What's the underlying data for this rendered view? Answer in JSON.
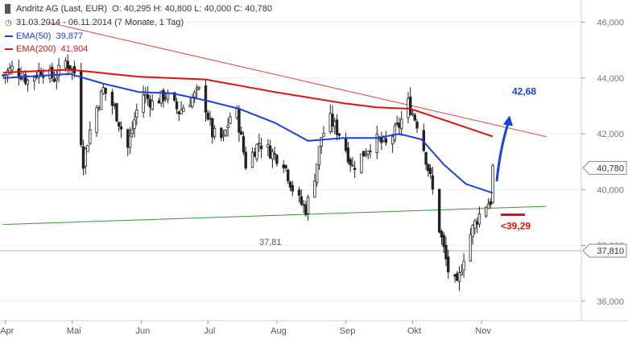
{
  "header": {
    "instrument": "Andritz AG (Last, EUR)",
    "ohlc": "O: 40,295  H: 40,800  L: 40,000  C: 40,780",
    "range": "31.03.2014 - 06.11.2014 (7 Monate, 1 Tag)",
    "ema50_label": "EMA(50)",
    "ema50_value": "39,877",
    "ema200_label": "EMA(200)",
    "ema200_value": "41,904"
  },
  "colors": {
    "ema50": "#1a3fe0",
    "ema200": "#e01010",
    "support": "#2e9a2e",
    "resistance": "#e84040",
    "target": "#1a3fe0",
    "stop": "#e01010",
    "candle": "#222222"
  },
  "chart_data": {
    "type": "candlestick",
    "x_range": [
      "2014-03-31",
      "2014-11-06"
    ],
    "x_ticks": [
      "Apr",
      "Mai",
      "Jun",
      "Jul",
      "Aug",
      "Sep",
      "Okt",
      "Nov"
    ],
    "y_ticks": [
      "36,000",
      "38,000",
      "40,000",
      "42,000",
      "44,000",
      "46,000"
    ],
    "ylim": [
      35.3,
      46.8
    ],
    "last_price_label": "40,780",
    "horizontal_line": {
      "value": 37.81,
      "label": "37,81",
      "axis_label": "37,810"
    },
    "target": {
      "label": "42,68",
      "from": 40.3,
      "to": 42.6
    },
    "stop": {
      "label": "<39,29",
      "value": 39.1
    },
    "close_path": [
      [
        "2014-03-31",
        44.1
      ],
      [
        "2014-04-05",
        44.4
      ],
      [
        "2014-04-11",
        43.9
      ],
      [
        "2014-04-17",
        44.3
      ],
      [
        "2014-04-23",
        44.0
      ],
      [
        "2014-04-28",
        44.6
      ],
      [
        "2014-05-02",
        44.2
      ],
      [
        "2014-05-06",
        41.0
      ],
      [
        "2014-05-10",
        42.5
      ],
      [
        "2014-05-15",
        43.6
      ],
      [
        "2014-05-20",
        42.9
      ],
      [
        "2014-05-26",
        41.5
      ],
      [
        "2014-06-01",
        43.5
      ],
      [
        "2014-06-06",
        43.1
      ],
      [
        "2014-06-12",
        43.4
      ],
      [
        "2014-06-18",
        42.8
      ],
      [
        "2014-06-24",
        43.3
      ],
      [
        "2014-06-28",
        43.6
      ],
      [
        "2014-07-03",
        42.0
      ],
      [
        "2014-07-08",
        41.8
      ],
      [
        "2014-07-13",
        43.2
      ],
      [
        "2014-07-18",
        40.9
      ],
      [
        "2014-07-24",
        41.7
      ],
      [
        "2014-07-30",
        41.3
      ],
      [
        "2014-08-04",
        41.0
      ],
      [
        "2014-08-09",
        39.8
      ],
      [
        "2014-08-14",
        39.3
      ],
      [
        "2014-08-18",
        40.5
      ],
      [
        "2014-08-21",
        41.9
      ],
      [
        "2014-08-25",
        42.5
      ],
      [
        "2014-08-30",
        41.9
      ],
      [
        "2014-09-04",
        40.8
      ],
      [
        "2014-09-09",
        41.3
      ],
      [
        "2014-09-14",
        41.8
      ],
      [
        "2014-09-19",
        41.6
      ],
      [
        "2014-09-25",
        42.3
      ],
      [
        "2014-09-29",
        43.1
      ],
      [
        "2014-10-04",
        42.2
      ],
      [
        "2014-10-09",
        40.4
      ],
      [
        "2014-10-13",
        38.6
      ],
      [
        "2014-10-17",
        37.1
      ],
      [
        "2014-10-21",
        36.5
      ],
      [
        "2014-10-25",
        38.0
      ],
      [
        "2014-10-29",
        38.8
      ],
      [
        "2014-11-02",
        39.4
      ],
      [
        "2014-11-05",
        39.6
      ],
      [
        "2014-11-06",
        40.78
      ]
    ],
    "series": [
      {
        "name": "EMA(50)",
        "points": [
          [
            "2014-03-31",
            44.0
          ],
          [
            "2014-04-30",
            44.15
          ],
          [
            "2014-05-15",
            43.8
          ],
          [
            "2014-05-31",
            43.5
          ],
          [
            "2014-06-15",
            43.45
          ],
          [
            "2014-06-30",
            43.2
          ],
          [
            "2014-07-15",
            42.9
          ],
          [
            "2014-07-31",
            42.4
          ],
          [
            "2014-08-15",
            41.75
          ],
          [
            "2014-08-31",
            41.85
          ],
          [
            "2014-09-15",
            41.85
          ],
          [
            "2014-09-25",
            42.0
          ],
          [
            "2014-10-05",
            41.8
          ],
          [
            "2014-10-15",
            40.9
          ],
          [
            "2014-10-25",
            40.2
          ],
          [
            "2014-11-06",
            39.877
          ]
        ]
      },
      {
        "name": "EMA(200)",
        "points": [
          [
            "2014-03-31",
            44.2
          ],
          [
            "2014-04-30",
            44.3
          ],
          [
            "2014-05-31",
            44.05
          ],
          [
            "2014-06-30",
            43.95
          ],
          [
            "2014-07-31",
            43.5
          ],
          [
            "2014-08-31",
            43.1
          ],
          [
            "2014-09-15",
            42.95
          ],
          [
            "2014-09-30",
            42.9
          ],
          [
            "2014-10-15",
            42.5
          ],
          [
            "2014-11-06",
            41.904
          ]
        ]
      }
    ],
    "trendlines": [
      {
        "kind": "resistance",
        "from": [
          "2014-04-20",
          46.0
        ],
        "to": [
          "2014-11-30",
          41.9
        ]
      },
      {
        "kind": "support",
        "from": [
          "2014-03-31",
          38.75
        ],
        "to": [
          "2014-11-30",
          39.4
        ]
      }
    ]
  }
}
